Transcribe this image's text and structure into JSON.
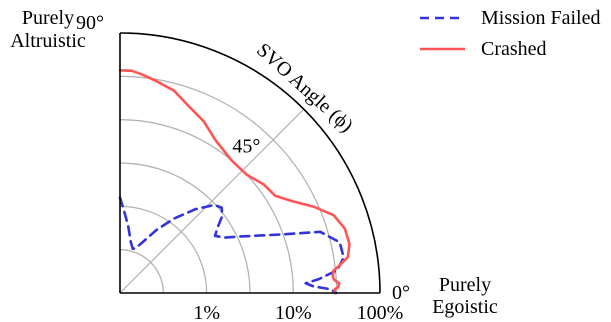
{
  "chart_data": {
    "type": "polar-line",
    "angle_label": "SVO Angle (ϕ)",
    "angle_range_deg": [
      0,
      90
    ],
    "angle_ticks": [
      {
        "deg": 0,
        "label": "0°"
      },
      {
        "deg": 45,
        "label": "45°"
      },
      {
        "deg": 90,
        "label": "90°"
      }
    ],
    "radial_scale": "log",
    "radial_range": [
      0.1,
      100
    ],
    "radial_ticks": [
      {
        "value": 1,
        "label": "1%"
      },
      {
        "value": 10,
        "label": "10%"
      },
      {
        "value": 100,
        "label": "100%"
      }
    ],
    "grid": true,
    "region_labels": {
      "altruistic": [
        "Purely",
        "Altruistic"
      ],
      "egoistic": [
        "Purely",
        "Egoistic"
      ]
    },
    "legend": {
      "placement": "top-right",
      "entries": [
        {
          "name": "Mission Failed",
          "style": "dashed",
          "color": "#3333dd"
        },
        {
          "name": "Crashed",
          "style": "solid",
          "color": "#ff5555"
        }
      ]
    },
    "series": [
      {
        "name": "Mission Failed",
        "points": [
          {
            "deg": 90,
            "r": 1.26
          },
          {
            "deg": 87,
            "r": 0.87
          },
          {
            "deg": 83,
            "r": 0.6
          },
          {
            "deg": 78,
            "r": 0.4
          },
          {
            "deg": 74,
            "r": 0.34
          },
          {
            "deg": 71,
            "r": 0.35
          },
          {
            "deg": 66,
            "r": 0.44
          },
          {
            "deg": 60,
            "r": 0.69
          },
          {
            "deg": 54,
            "r": 1.15
          },
          {
            "deg": 48,
            "r": 2.0
          },
          {
            "deg": 43,
            "r": 3.1
          },
          {
            "deg": 40,
            "r": 3.4
          },
          {
            "deg": 37,
            "r": 3.0
          },
          {
            "deg": 34,
            "r": 2.3
          },
          {
            "deg": 31,
            "r": 1.9
          },
          {
            "deg": 28,
            "r": 2.3
          },
          {
            "deg": 25,
            "r": 3.5
          },
          {
            "deg": 20,
            "r": 9.4
          },
          {
            "deg": 17,
            "r": 26
          },
          {
            "deg": 13,
            "r": 40
          },
          {
            "deg": 9,
            "r": 41
          },
          {
            "deg": 6,
            "r": 33
          },
          {
            "deg": 4,
            "r": 20
          },
          {
            "deg": 3,
            "r": 14
          },
          {
            "deg": 2,
            "r": 17
          },
          {
            "deg": 1,
            "r": 27
          },
          {
            "deg": 0,
            "r": 31
          }
        ]
      },
      {
        "name": "Crashed",
        "points": [
          {
            "deg": 90,
            "r": 37
          },
          {
            "deg": 87,
            "r": 37
          },
          {
            "deg": 84,
            "r": 34
          },
          {
            "deg": 80,
            "r": 30
          },
          {
            "deg": 75,
            "r": 26
          },
          {
            "deg": 70,
            "r": 20
          },
          {
            "deg": 64,
            "r": 16
          },
          {
            "deg": 58,
            "r": 12
          },
          {
            "deg": 50,
            "r": 10
          },
          {
            "deg": 43,
            "r": 10
          },
          {
            "deg": 37,
            "r": 12
          },
          {
            "deg": 32,
            "r": 13
          },
          {
            "deg": 28,
            "r": 18
          },
          {
            "deg": 24,
            "r": 28
          },
          {
            "deg": 20,
            "r": 42
          },
          {
            "deg": 16,
            "r": 50
          },
          {
            "deg": 12,
            "r": 51
          },
          {
            "deg": 9,
            "r": 46
          },
          {
            "deg": 7,
            "r": 35
          },
          {
            "deg": 6,
            "r": 30
          },
          {
            "deg": 4.5,
            "r": 29
          },
          {
            "deg": 3.5,
            "r": 30
          },
          {
            "deg": 2.5,
            "r": 34
          },
          {
            "deg": 1.5,
            "r": 33
          },
          {
            "deg": 1,
            "r": 30
          },
          {
            "deg": 0,
            "r": 30
          }
        ]
      }
    ]
  }
}
